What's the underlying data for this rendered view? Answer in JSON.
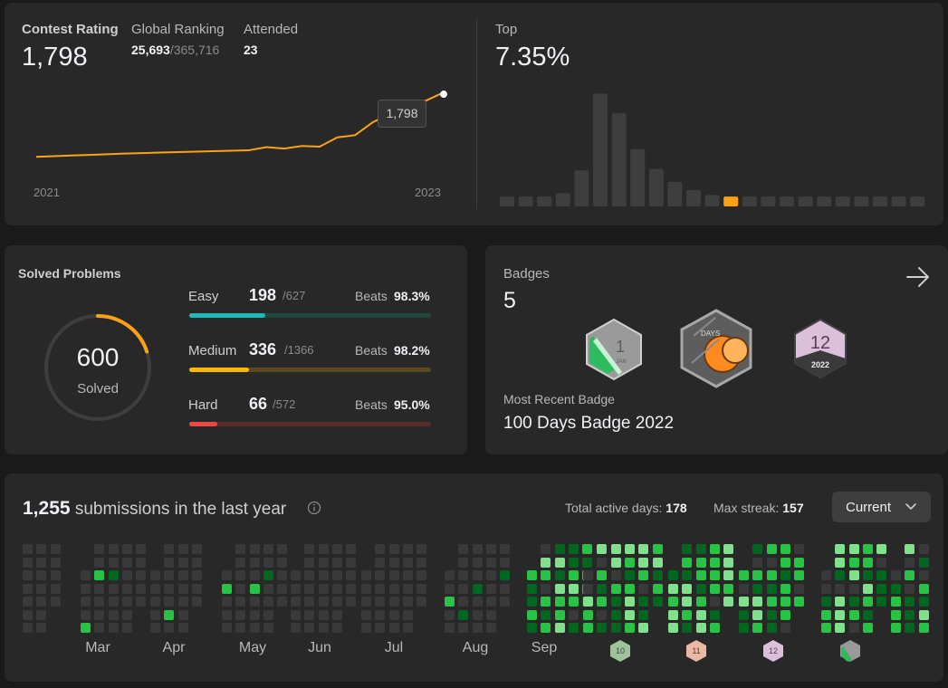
{
  "contest": {
    "rating_label": "Contest Rating",
    "rating_value": "1,798",
    "global_label": "Global Ranking",
    "global_rank": "25,693",
    "global_total": "/365,716",
    "attended_label": "Attended",
    "attended_value": "23",
    "tooltip": "1,798",
    "year_start": "2021",
    "year_end": "2023",
    "top_label": "Top",
    "top_value": "7.35%"
  },
  "chart_data": [
    {
      "type": "line",
      "x": [
        "2021",
        "",
        "",
        "",
        "",
        "",
        "",
        "",
        "",
        "",
        "",
        "",
        "",
        "",
        "",
        "",
        "",
        "",
        "",
        "",
        "",
        "",
        "",
        "2023"
      ],
      "values": [
        1500,
        1503,
        1506,
        1509,
        1512,
        1515,
        1517,
        1520,
        1522,
        1524,
        1526,
        1528,
        1530,
        1545,
        1538,
        1550,
        1547,
        1590,
        1600,
        1660,
        1700,
        1735,
        1760,
        1798
      ],
      "xlabel": "",
      "ylabel": ""
    },
    {
      "type": "bar",
      "values": [
        6,
        6,
        6,
        8,
        22,
        69,
        57,
        35,
        23,
        15,
        10,
        7,
        6,
        6,
        6,
        6,
        6,
        6,
        6,
        6,
        6,
        6,
        6
      ],
      "highlight_index": 12,
      "xlabel": "",
      "ylabel": ""
    }
  ],
  "solved": {
    "title": "Solved Problems",
    "total": "600",
    "total_label": "Solved",
    "progress_fraction": 0.2,
    "rows": [
      {
        "name": "Easy",
        "solved": "198",
        "total": "/627",
        "beats_label": "Beats",
        "beats": "98.3%",
        "fraction": 0.316,
        "color": "#1cbaba",
        "track": "#21483f"
      },
      {
        "name": "Medium",
        "solved": "336",
        "total": "/1366",
        "beats_label": "Beats",
        "beats": "98.2%",
        "fraction": 0.246,
        "color": "#ffb800",
        "track": "#5b4a1f"
      },
      {
        "name": "Hard",
        "solved": "66",
        "total": "/572",
        "beats_label": "Beats",
        "beats": "95.0%",
        "fraction": 0.115,
        "color": "#ef4743",
        "track": "#5a2b2b"
      }
    ]
  },
  "badges": {
    "title": "Badges",
    "count": "5",
    "recent_label": "Most Recent Badge",
    "recent_name": "100 Days Badge 2022",
    "badge1_text": "1",
    "badge1_sub": "JAN",
    "badge2_text": "DAYS",
    "badge3_text": "12",
    "badge3_year": "2022"
  },
  "submissions": {
    "count": "1,255",
    "text": "submissions in the last year",
    "active_label": "Total active days:",
    "active_value": "178",
    "streak_label": "Max streak:",
    "streak_value": "157",
    "dropdown": "Current",
    "months": [
      "Mar",
      "Apr",
      "May",
      "Jun",
      "Jul",
      "Aug",
      "Sep"
    ],
    "badge_labels": [
      "10",
      "11",
      "12"
    ]
  },
  "colors": {
    "accent": "#ffa116",
    "card": "#282828",
    "green_levels": [
      "#393939",
      "#016620",
      "#28c244",
      "#7fe18b"
    ]
  }
}
